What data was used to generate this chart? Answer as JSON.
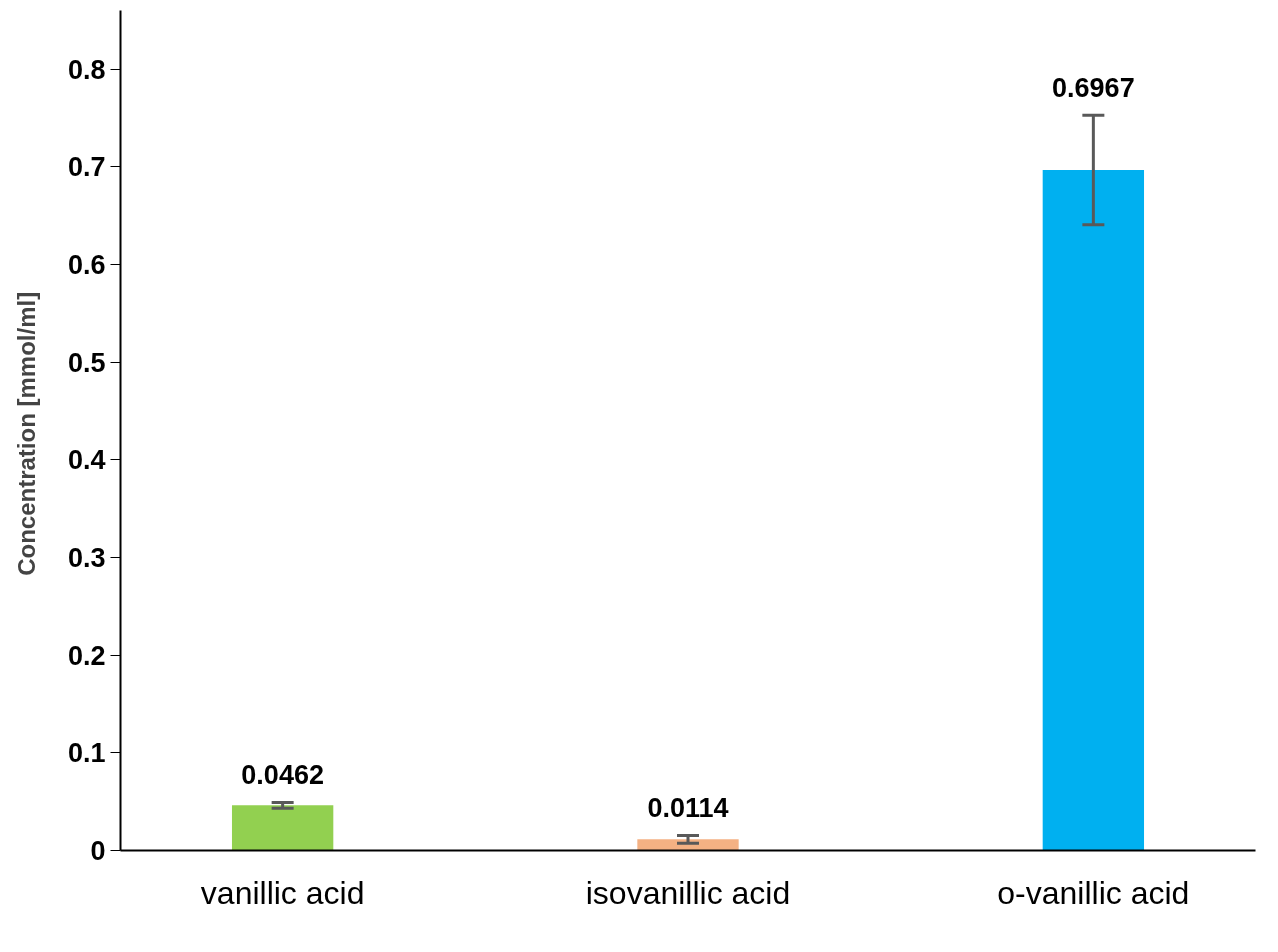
{
  "chart_data": {
    "type": "bar",
    "ylabel": "Concentration  [mmol/ml]",
    "categories": [
      "vanillic acid",
      "isovanillic acid",
      "o-vanillic acid"
    ],
    "values": [
      0.0462,
      0.0114,
      0.6967
    ],
    "colors": [
      "#92d050",
      "#f4b183",
      "#00b0f0"
    ],
    "errors": [
      0.003,
      0.004,
      0.056
    ],
    "ylim": [
      0,
      0.86
    ],
    "yticks": [
      {
        "value": 0,
        "label": "0"
      },
      0.1,
      0.2,
      0.3,
      0.4,
      0.5,
      0.6,
      0.7,
      0.8
    ],
    "data_labels": true,
    "grid": false
  }
}
